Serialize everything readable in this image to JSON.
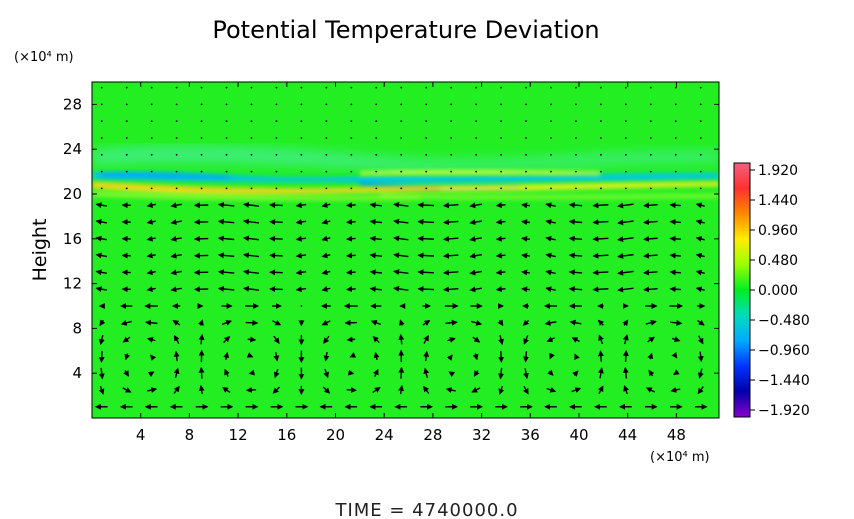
{
  "chart_data": {
    "type": "heatmap",
    "title": "Potential Temperature Deviation",
    "ylabel": "Height",
    "y_unit": "(×10⁴ m)",
    "x_unit": "(×10⁴ m)",
    "x_ticks": [
      "4",
      "8",
      "12",
      "16",
      "20",
      "24",
      "28",
      "32",
      "36",
      "40",
      "44",
      "48"
    ],
    "y_ticks": [
      "4",
      "8",
      "12",
      "16",
      "20",
      "24",
      "28"
    ],
    "xlim": [
      0,
      51.5
    ],
    "ylim": [
      0,
      30
    ],
    "colorbar": {
      "labels": [
        "1.920",
        "1.440",
        "0.960",
        "0.480",
        "0.000",
        "−0.480",
        "−0.960",
        "−1.440",
        "−1.920"
      ],
      "range": [
        -1.92,
        1.92
      ]
    },
    "background_value": 0.0,
    "features": [
      {
        "name": "inversion-layer",
        "y": 20.5,
        "value_warm": 1.0,
        "value_cold": -0.7
      },
      {
        "name": "upper-cool-band",
        "y": 21.5,
        "value": -0.5
      }
    ],
    "overlay": "velocity vectors"
  },
  "footer": {
    "time_label": "TIME  =  4740000.0"
  },
  "colors": {
    "background_field": "#22ee22",
    "vector": "#000000"
  }
}
